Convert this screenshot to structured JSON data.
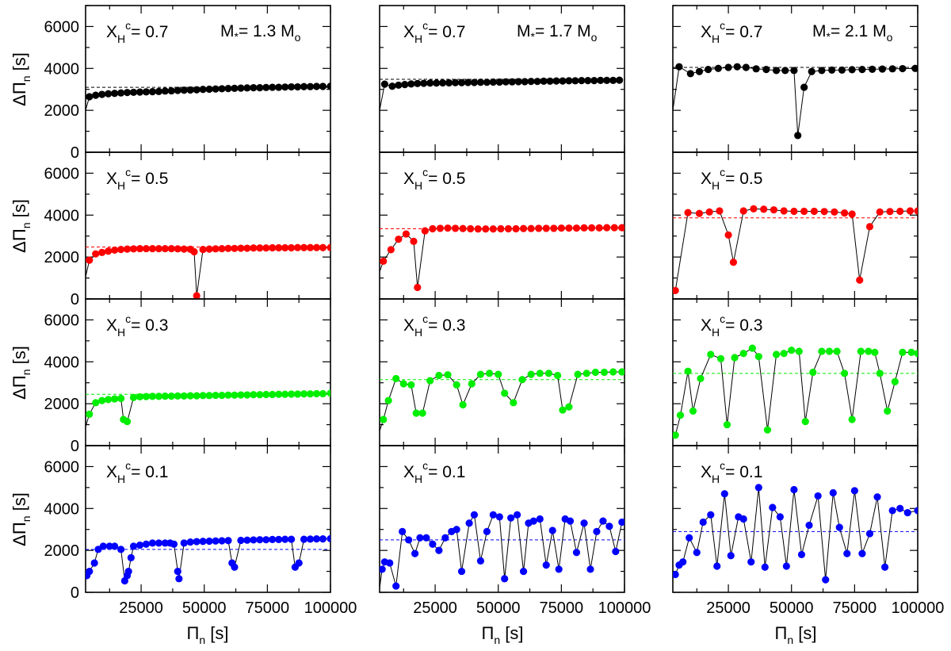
{
  "chart_data": {
    "type": "scatter",
    "xlabel": "Π_n [s]",
    "ylabel": "ΔΠ_n [s]",
    "xlim": [
      3000,
      100000
    ],
    "ylim": [
      0,
      7000
    ],
    "xticks": [
      25000,
      50000,
      75000,
      100000
    ],
    "yticks": [
      0,
      2000,
      4000,
      6000
    ],
    "xtick_labels": [
      "25000",
      "50000",
      "75000",
      "100000"
    ],
    "ytick_labels": [
      "0",
      "2000",
      "4000",
      "6000"
    ],
    "xlabel_main": "Π",
    "xlabel_sub": "n",
    "xlabel_unit": " [s]",
    "ylabel_main": "ΔΠ",
    "ylabel_sub": "n",
    "ylabel_unit": " [s]",
    "columns": [
      {
        "mass_label": "M",
        "mass_sub": "*",
        "mass_value": "= 1.3 M",
        "mass_unit_sub": "o"
      },
      {
        "mass_label": "M",
        "mass_sub": "*",
        "mass_value": "= 1.7 M",
        "mass_unit_sub": "o"
      },
      {
        "mass_label": "M",
        "mass_sub": "*",
        "mass_value": "= 2.1 M",
        "mass_unit_sub": "o"
      }
    ],
    "rows": [
      {
        "xh": "0.7",
        "color": "#000000"
      },
      {
        "xh": "0.5",
        "color": "#ff0000"
      },
      {
        "xh": "0.3",
        "color": "#00ee00"
      },
      {
        "xh": "0.1",
        "color": "#0000ff"
      }
    ],
    "xh_label": "X",
    "xh_sub": "H",
    "xh_sup": "c",
    "panels": [
      [
        {
          "mean": 3100,
          "x": [
            3000,
            4500,
            7000,
            9500,
            12000,
            14500,
            17000,
            19500,
            22000,
            24500,
            27000,
            29500,
            32000,
            34500,
            37000,
            39500,
            42000,
            44500,
            47000,
            49500,
            52000,
            54500,
            57000,
            59500,
            62000,
            64500,
            67000,
            69500,
            72000,
            74500,
            77000,
            79500,
            82000,
            84500,
            87000,
            89500,
            92000,
            94500,
            97000,
            100000
          ],
          "y": [
            2000,
            2650,
            2720,
            2760,
            2790,
            2810,
            2830,
            2850,
            2860,
            2870,
            2880,
            2890,
            2900,
            2920,
            2930,
            2950,
            2960,
            2970,
            2980,
            3000,
            3010,
            3020,
            3030,
            3040,
            3050,
            3060,
            3070,
            3080,
            3080,
            3090,
            3100,
            3100,
            3110,
            3120,
            3120,
            3130,
            3130,
            3140,
            3140,
            3150
          ]
        },
        {
          "mean": 3480,
          "x": [
            3000,
            5000,
            8000,
            10500,
            13000,
            15500,
            18000,
            20500,
            23000,
            25500,
            28000,
            30500,
            33000,
            35500,
            38000,
            40500,
            43000,
            45500,
            48000,
            50500,
            53000,
            55500,
            58000,
            60500,
            63000,
            65500,
            68000,
            70500,
            73000,
            75500,
            78000,
            80500,
            83000,
            85500,
            88000,
            90500,
            93000,
            95500,
            98000
          ],
          "y": [
            2000,
            3250,
            3150,
            3200,
            3230,
            3260,
            3280,
            3290,
            3300,
            3300,
            3310,
            3310,
            3320,
            3320,
            3330,
            3330,
            3340,
            3340,
            3350,
            3350,
            3360,
            3360,
            3370,
            3370,
            3380,
            3380,
            3390,
            3390,
            3400,
            3400,
            3410,
            3410,
            3420,
            3420,
            3420,
            3430,
            3430,
            3430,
            3440
          ]
        },
        {
          "mean": 4050,
          "x": [
            3000,
            5500,
            10000,
            13500,
            17000,
            21000,
            25000,
            28500,
            32000,
            36000,
            40000,
            44000,
            47500,
            51000,
            52500,
            55000,
            58000,
            62000,
            66000,
            70000,
            74000,
            78000,
            82000,
            86000,
            90000,
            94000,
            99000
          ],
          "y": [
            2000,
            4080,
            3750,
            3850,
            3950,
            4000,
            4050,
            4080,
            4050,
            3980,
            3950,
            3900,
            3900,
            3900,
            800,
            3100,
            3850,
            3900,
            3920,
            3920,
            3940,
            3950,
            3960,
            3970,
            3980,
            3990,
            4000
          ]
        }
      ],
      [
        {
          "mean": 2480,
          "x": [
            3000,
            4500,
            7000,
            9500,
            12000,
            14500,
            17000,
            19500,
            22000,
            24500,
            27000,
            29500,
            32000,
            34500,
            37000,
            39500,
            42000,
            44500,
            46000,
            47000,
            49500,
            52000,
            54500,
            57000,
            59500,
            62000,
            64500,
            67000,
            69500,
            72000,
            74500,
            77000,
            79500,
            82000,
            84500,
            87000,
            89500,
            92000,
            94500,
            97000,
            100000
          ],
          "y": [
            1050,
            1850,
            2150,
            2220,
            2280,
            2330,
            2360,
            2380,
            2390,
            2400,
            2400,
            2400,
            2400,
            2400,
            2400,
            2390,
            2380,
            2370,
            2250,
            150,
            2360,
            2380,
            2390,
            2400,
            2410,
            2410,
            2420,
            2420,
            2430,
            2430,
            2430,
            2440,
            2440,
            2440,
            2440,
            2450,
            2450,
            2450,
            2450,
            2450,
            2450
          ]
        },
        {
          "mean": 3350,
          "x": [
            3000,
            4500,
            7500,
            10500,
            13500,
            16500,
            18000,
            21000,
            24000,
            27000,
            30000,
            33000,
            36000,
            39000,
            42000,
            45000,
            48000,
            51000,
            54000,
            57000,
            60000,
            63000,
            66000,
            69000,
            72000,
            75000,
            78000,
            81000,
            84000,
            87000,
            90000,
            93000,
            96000,
            99000
          ],
          "y": [
            1300,
            1800,
            2350,
            2850,
            3100,
            2750,
            550,
            3250,
            3350,
            3370,
            3380,
            3370,
            3360,
            3350,
            3340,
            3340,
            3340,
            3350,
            3350,
            3350,
            3360,
            3360,
            3370,
            3370,
            3370,
            3380,
            3380,
            3380,
            3390,
            3390,
            3390,
            3400,
            3400,
            3400
          ]
        },
        {
          "mean": 3870,
          "x": [
            3000,
            4000,
            9000,
            13500,
            17500,
            21500,
            25000,
            27000,
            31000,
            35000,
            39000,
            43000,
            47000,
            51000,
            55000,
            59000,
            63000,
            67000,
            71000,
            74000,
            77000,
            81000,
            85000,
            89000,
            93000,
            97000,
            100000
          ],
          "y": [
            500,
            400,
            4120,
            4080,
            4150,
            4200,
            3050,
            1750,
            4200,
            4300,
            4280,
            4250,
            4200,
            4180,
            4180,
            4180,
            4170,
            4150,
            4100,
            4050,
            900,
            3450,
            4150,
            4170,
            4180,
            4200,
            4200
          ]
        }
      ],
      [
        {
          "mean": 2450,
          "x": [
            3000,
            4500,
            7000,
            9500,
            12000,
            14500,
            17000,
            18000,
            19500,
            22000,
            24500,
            27000,
            29500,
            32000,
            34500,
            37000,
            39500,
            42000,
            44500,
            47000,
            49500,
            52000,
            54500,
            57000,
            59500,
            62000,
            64500,
            67000,
            69500,
            72000,
            74500,
            77000,
            79500,
            82000,
            84500,
            87000,
            89500,
            92000,
            94500,
            97000,
            100000
          ],
          "y": [
            900,
            1500,
            2050,
            2150,
            2200,
            2230,
            2250,
            1250,
            1150,
            2300,
            2330,
            2340,
            2350,
            2350,
            2360,
            2360,
            2370,
            2370,
            2380,
            2380,
            2390,
            2390,
            2400,
            2400,
            2410,
            2410,
            2420,
            2420,
            2430,
            2430,
            2440,
            2440,
            2450,
            2450,
            2460,
            2460,
            2470,
            2470,
            2480,
            2480,
            2500
          ]
        },
        {
          "mean": 3150,
          "x": [
            3000,
            4500,
            6500,
            9500,
            12500,
            15500,
            17500,
            20000,
            23000,
            26500,
            30000,
            33500,
            36000,
            39500,
            43000,
            46500,
            50000,
            52500,
            56000,
            59500,
            63000,
            66500,
            70000,
            73500,
            75500,
            78000,
            81500,
            85000,
            88500,
            92000,
            95500,
            99000
          ],
          "y": [
            700,
            1250,
            2150,
            3200,
            2950,
            2900,
            1550,
            1550,
            3100,
            3350,
            3380,
            2900,
            1950,
            2950,
            3400,
            3450,
            3400,
            2500,
            2050,
            3150,
            3400,
            3450,
            3450,
            3350,
            1700,
            1850,
            3400,
            3450,
            3500,
            3500,
            3520,
            3520
          ]
        },
        {
          "mean": 3450,
          "x": [
            3000,
            4000,
            6000,
            9000,
            11000,
            14000,
            18000,
            22000,
            24500,
            27500,
            31000,
            34500,
            37000,
            40500,
            44000,
            47000,
            50000,
            53000,
            55500,
            58500,
            62000,
            65000,
            68000,
            71000,
            74000,
            77500,
            80500,
            83000,
            85000,
            88000,
            91000,
            94000,
            97500,
            100000
          ],
          "y": [
            500,
            500,
            1450,
            3550,
            1650,
            3200,
            4350,
            4150,
            1000,
            4200,
            4400,
            4650,
            4250,
            750,
            4350,
            4400,
            4550,
            4500,
            1150,
            3500,
            4500,
            4500,
            4500,
            3450,
            1250,
            4500,
            4500,
            4450,
            3450,
            1650,
            3050,
            4450,
            4450,
            4400
          ]
        }
      ],
      [
        {
          "mean": 2050,
          "x": [
            3000,
            3500,
            4500,
            6500,
            8000,
            10000,
            12500,
            14500,
            17000,
            18500,
            19500,
            20000,
            21000,
            22000,
            24500,
            27000,
            29500,
            32000,
            34500,
            36500,
            38000,
            39500,
            40000,
            42000,
            44500,
            47000,
            49500,
            52000,
            54500,
            57000,
            59500,
            61000,
            62000,
            64500,
            67000,
            69500,
            72000,
            74500,
            77000,
            79500,
            82000,
            84500,
            86000,
            87500,
            89500,
            92000,
            94500,
            97000,
            100000
          ],
          "y": [
            1050,
            800,
            1000,
            1400,
            2050,
            2200,
            2200,
            2200,
            2050,
            550,
            800,
            1000,
            1650,
            2200,
            2250,
            2300,
            2350,
            2350,
            2350,
            2350,
            2300,
            1000,
            650,
            2350,
            2400,
            2420,
            2430,
            2440,
            2450,
            2460,
            2470,
            1400,
            1200,
            2480,
            2490,
            2500,
            2510,
            2510,
            2520,
            2520,
            2530,
            2530,
            1200,
            1400,
            2530,
            2540,
            2550,
            2550,
            2560
          ]
        },
        {
          "mean": 2500,
          "x": [
            3000,
            4000,
            5000,
            7000,
            9500,
            12000,
            14500,
            17000,
            19000,
            21500,
            24000,
            26500,
            29000,
            31500,
            33500,
            35500,
            38500,
            40500,
            43000,
            45500,
            48000,
            50500,
            52500,
            55000,
            57500,
            60000,
            62000,
            64000,
            66500,
            69000,
            71500,
            74000,
            76500,
            78500,
            81000,
            84000,
            86500,
            89000,
            91500,
            94000,
            96500,
            99000
          ],
          "y": [
            200,
            1100,
            1450,
            1400,
            300,
            2900,
            2500,
            1850,
            2600,
            2600,
            2300,
            2000,
            2600,
            2900,
            3000,
            1000,
            3300,
            3700,
            1500,
            2900,
            3700,
            3600,
            650,
            3550,
            3700,
            1000,
            3300,
            3400,
            3500,
            1300,
            2950,
            1100,
            3500,
            3400,
            1900,
            3300,
            1100,
            2900,
            3400,
            3150,
            1950,
            3350
          ]
        },
        {
          "mean": 2900,
          "x": [
            3000,
            4000,
            5500,
            7000,
            9500,
            12500,
            15000,
            18000,
            20500,
            23500,
            26000,
            29000,
            31000,
            34000,
            37000,
            39500,
            42500,
            45500,
            48000,
            51000,
            54000,
            57000,
            60500,
            63500,
            66500,
            69000,
            72000,
            75000,
            78000,
            81000,
            84000,
            87000,
            90000,
            93000,
            96000,
            100000
          ],
          "y": [
            800,
            850,
            1300,
            1450,
            2600,
            1900,
            3350,
            3700,
            1250,
            4700,
            1750,
            3600,
            3500,
            1450,
            5000,
            1200,
            4050,
            3600,
            1250,
            4900,
            1800,
            3200,
            4600,
            600,
            4750,
            3100,
            1850,
            4850,
            1850,
            2800,
            4550,
            1200,
            3900,
            4000,
            3800,
            3900
          ]
        }
      ]
    ]
  }
}
